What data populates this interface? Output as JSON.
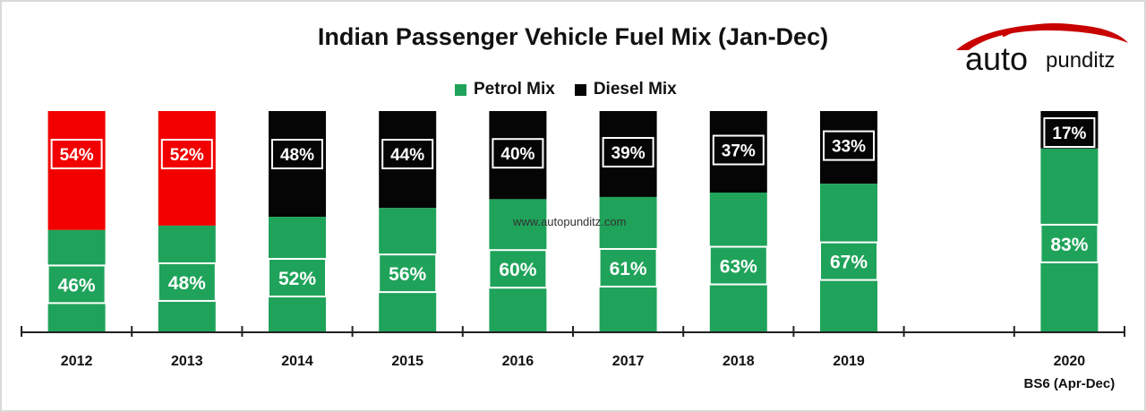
{
  "chart_data": {
    "type": "bar",
    "stacked": true,
    "title": "Indian Passenger Vehicle Fuel Mix (Jan-Dec)",
    "categories": [
      "2012",
      "2013",
      "2014",
      "2015",
      "2016",
      "2017",
      "2018",
      "2019",
      "",
      "2020"
    ],
    "category_sublabels": [
      "",
      "",
      "",
      "",
      "",
      "",
      "",
      "",
      "",
      "BS6 (Apr-Dec)"
    ],
    "series": [
      {
        "name": "Petrol Mix",
        "values": [
          46,
          48,
          52,
          56,
          60,
          61,
          63,
          67,
          null,
          83
        ],
        "labels": [
          "46%",
          "48%",
          "52%",
          "56%",
          "60%",
          "61%",
          "63%",
          "67%",
          "",
          "83%"
        ]
      },
      {
        "name": "Diesel Mix",
        "values": [
          54,
          52,
          48,
          44,
          40,
          39,
          37,
          33,
          null,
          17
        ],
        "labels": [
          "54%",
          "52%",
          "48%",
          "44%",
          "40%",
          "39%",
          "37%",
          "33%",
          "",
          "17%"
        ]
      }
    ],
    "ylim": [
      0,
      100
    ],
    "legend_position": "top-center",
    "grid": false,
    "colors": {
      "petrol": "#1fa35a",
      "diesel": "#050505",
      "diesel_highlight": "#f20000"
    },
    "highlight_red_diesel": [
      "2012",
      "2013"
    ]
  },
  "watermark": "www.autopunditz.com",
  "logo": {
    "part1": "auto",
    "part2": "punditz"
  }
}
